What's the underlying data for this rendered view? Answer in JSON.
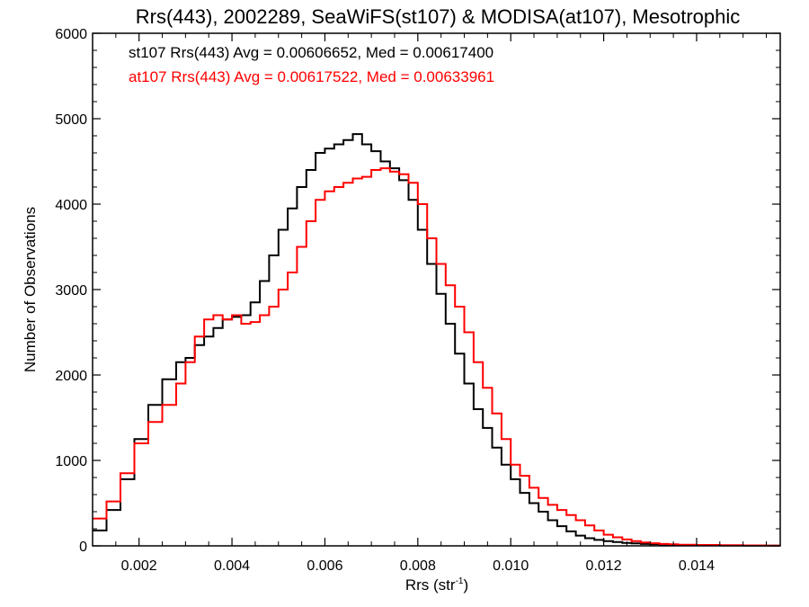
{
  "chart_data": {
    "type": "line",
    "title": "Rrs(443), 2002289, SeaWiFS(st107) & MODISA(at107), Mesotrophic",
    "xlabel_main": "Rrs (str",
    "xlabel_sup": "-1",
    "xlabel_close": ")",
    "ylabel": "Number of Observations",
    "xlim": [
      0.001,
      0.0158
    ],
    "ylim": [
      0,
      6000
    ],
    "xticks": [
      0.002,
      0.004,
      0.006,
      0.008,
      0.01,
      0.012,
      0.014
    ],
    "xtick_labels": [
      "0.002",
      "0.004",
      "0.006",
      "0.008",
      "0.010",
      "0.012",
      "0.014"
    ],
    "yticks": [
      0,
      1000,
      2000,
      3000,
      4000,
      5000,
      6000
    ],
    "ytick_labels": [
      "0",
      "1000",
      "2000",
      "3000",
      "4000",
      "5000",
      "6000"
    ],
    "grid": false,
    "annotations": [
      {
        "text": "st107 Rrs(443) Avg = 0.00606652, Med = 0.00617400",
        "color": "#000000"
      },
      {
        "text": "at107 Rrs(443) Avg = 0.00617522, Med = 0.00633961",
        "color": "#ff0000"
      }
    ],
    "series": [
      {
        "color": "#000000",
        "x": [
          0.001,
          0.0013,
          0.0016,
          0.0019,
          0.0022,
          0.0025,
          0.0028,
          0.003,
          0.0032,
          0.0034,
          0.0036,
          0.0038,
          0.004,
          0.0042,
          0.0044,
          0.0046,
          0.0048,
          0.005,
          0.0052,
          0.0054,
          0.0056,
          0.0058,
          0.006,
          0.0062,
          0.0064,
          0.0066,
          0.0068,
          0.007,
          0.0072,
          0.0074,
          0.0076,
          0.0078,
          0.008,
          0.0082,
          0.0084,
          0.0086,
          0.0088,
          0.009,
          0.0092,
          0.0094,
          0.0096,
          0.0098,
          0.01,
          0.0102,
          0.0104,
          0.0106,
          0.0108,
          0.011,
          0.0112,
          0.0114,
          0.0116,
          0.0118,
          0.012,
          0.0122,
          0.0124,
          0.0126,
          0.0128,
          0.013,
          0.0132,
          0.0134,
          0.0136,
          0.014,
          0.0145,
          0.015,
          0.0155,
          0.0158
        ],
        "y": [
          180,
          420,
          780,
          1250,
          1650,
          1950,
          2150,
          2200,
          2350,
          2450,
          2550,
          2650,
          2680,
          2700,
          2850,
          3100,
          3400,
          3700,
          3950,
          4200,
          4400,
          4600,
          4650,
          4700,
          4750,
          4820,
          4700,
          4620,
          4500,
          4420,
          4280,
          4050,
          3700,
          3300,
          2950,
          2600,
          2250,
          1900,
          1600,
          1380,
          1150,
          950,
          780,
          620,
          500,
          400,
          300,
          230,
          170,
          120,
          90,
          70,
          55,
          45,
          35,
          28,
          22,
          18,
          14,
          11,
          9,
          6,
          4,
          3,
          2,
          2
        ]
      },
      {
        "color": "#ff0000",
        "x": [
          0.001,
          0.0013,
          0.0016,
          0.0019,
          0.0022,
          0.0025,
          0.0028,
          0.003,
          0.0032,
          0.0034,
          0.0036,
          0.0038,
          0.004,
          0.0042,
          0.0044,
          0.0046,
          0.0048,
          0.005,
          0.0052,
          0.0054,
          0.0056,
          0.0058,
          0.006,
          0.0062,
          0.0064,
          0.0066,
          0.0068,
          0.007,
          0.0072,
          0.0074,
          0.0076,
          0.0078,
          0.008,
          0.0082,
          0.0084,
          0.0086,
          0.0088,
          0.009,
          0.0092,
          0.0094,
          0.0096,
          0.0098,
          0.01,
          0.0102,
          0.0104,
          0.0106,
          0.0108,
          0.011,
          0.0112,
          0.0114,
          0.0116,
          0.0118,
          0.012,
          0.0122,
          0.0124,
          0.0126,
          0.0128,
          0.013,
          0.0132,
          0.0134,
          0.0136,
          0.014,
          0.0145,
          0.015,
          0.0155,
          0.0158
        ],
        "y": [
          320,
          520,
          850,
          1200,
          1450,
          1650,
          1900,
          2150,
          2450,
          2650,
          2700,
          2650,
          2700,
          2600,
          2620,
          2700,
          2800,
          3000,
          3200,
          3500,
          3800,
          4050,
          4150,
          4200,
          4250,
          4300,
          4320,
          4400,
          4420,
          4380,
          4350,
          4250,
          4000,
          3600,
          3300,
          3050,
          2800,
          2500,
          2150,
          1850,
          1550,
          1250,
          950,
          820,
          680,
          560,
          480,
          420,
          360,
          300,
          240,
          180,
          130,
          100,
          75,
          55,
          40,
          30,
          22,
          18,
          14,
          10,
          7,
          5,
          3,
          3
        ]
      }
    ]
  }
}
